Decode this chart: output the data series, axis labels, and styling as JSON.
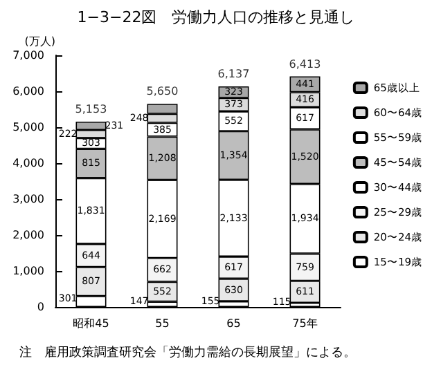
{
  "chart_data": {
    "type": "bar",
    "title": "1−3−22図　労働力人口の推移と見通し",
    "ylabel": "(万人)",
    "categories": [
      "昭和45",
      "55",
      "65",
      "75年"
    ],
    "stacked": true,
    "ylim": [
      0,
      7000
    ],
    "yticks": [
      {
        "value": 0,
        "label": "0"
      },
      {
        "value": 1000,
        "label": "1,000"
      },
      {
        "value": 2000,
        "label": "2,000"
      },
      {
        "value": 3000,
        "label": "3,000"
      },
      {
        "value": 4000,
        "label": "4,000"
      },
      {
        "value": 5000,
        "label": "5,000"
      },
      {
        "value": 6000,
        "label": "6,000"
      },
      {
        "value": 7000,
        "label": "7,000"
      }
    ],
    "grid": false,
    "legend": "right",
    "series": [
      {
        "name": "15〜19歳",
        "color": "#ffffff",
        "values": [
          301,
          147,
          155,
          115
        ],
        "value_labels": [
          "301",
          "147",
          "155",
          "115"
        ]
      },
      {
        "name": "20〜24歳",
        "color": "#e8e8e8",
        "values": [
          807,
          552,
          630,
          611
        ],
        "value_labels": [
          "807",
          "552",
          "630",
          "611"
        ]
      },
      {
        "name": "25〜29歳",
        "color": "#f4f4f4",
        "values": [
          644,
          662,
          617,
          759
        ],
        "value_labels": [
          "644",
          "662",
          "617",
          "759"
        ]
      },
      {
        "name": "30〜44歳",
        "color": "#ffffff",
        "values": [
          1831,
          2169,
          2133,
          1934
        ],
        "value_labels": [
          "1,831",
          "2,169",
          "2,133",
          "1,934"
        ]
      },
      {
        "name": "45〜54歳",
        "color": "#bdbdbd",
        "values": [
          815,
          1208,
          1354,
          1520
        ],
        "value_labels": [
          "815",
          "1,208",
          "1,354",
          "1,520"
        ]
      },
      {
        "name": "55〜59歳",
        "color": "#ffffff",
        "values": [
          303,
          385,
          552,
          617
        ],
        "value_labels": [
          "303",
          "385",
          "552",
          "617"
        ]
      },
      {
        "name": "60〜64歳",
        "color": "#dcdcdc",
        "values": [
          222,
          248,
          373,
          416
        ],
        "value_labels": [
          "222",
          "248",
          "373",
          "416"
        ]
      },
      {
        "name": "65歳以上",
        "color": "#a8a8a8",
        "values": [
          231,
          279,
          323,
          441
        ],
        "value_labels": [
          "231",
          null,
          "323",
          "441"
        ]
      }
    ],
    "totals": [
      "5,153",
      "5,650",
      "6,137",
      "6,413"
    ],
    "annotations": [
      "注　雇用政策調査研究会「労働力需給の長期展望」による。"
    ]
  }
}
